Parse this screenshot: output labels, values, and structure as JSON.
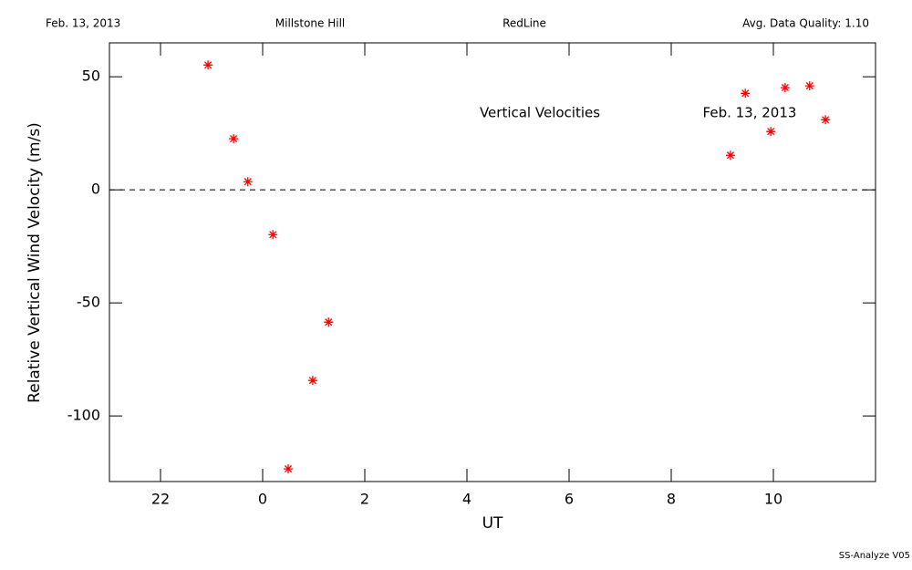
{
  "header": {
    "date": "Feb. 13, 2013",
    "site": "Millstone Hill",
    "filter": "RedLine",
    "quality": "Avg. Data Quality: 1.10"
  },
  "footer": "SS-Analyze V05",
  "chart_data": {
    "type": "scatter",
    "annotations": [
      "Vertical Velocities",
      "Feb. 13, 2013"
    ],
    "xlabel": "UT",
    "ylabel": "Relative Vertical Wind Velocity (m/s)",
    "xlim": [
      -3,
      12
    ],
    "ylim": [
      -129,
      65
    ],
    "xticks": [
      {
        "value": -2,
        "label": "22"
      },
      0,
      2,
      4,
      6,
      8,
      10
    ],
    "yticks": [
      -100,
      -50,
      0,
      50
    ],
    "hline": 0,
    "series": [
      {
        "color": "#ff0000",
        "x": [
          -1.07,
          -0.57,
          -0.29,
          0.2,
          0.5,
          0.98,
          1.29,
          9.16,
          9.45,
          9.95,
          10.23,
          10.71,
          11.02
        ],
        "values": [
          55.2,
          22.6,
          3.6,
          -19.8,
          -123.4,
          -84.3,
          -58.5,
          15.3,
          42.7,
          25.8,
          45.2,
          46.0,
          31.0
        ]
      }
    ]
  }
}
